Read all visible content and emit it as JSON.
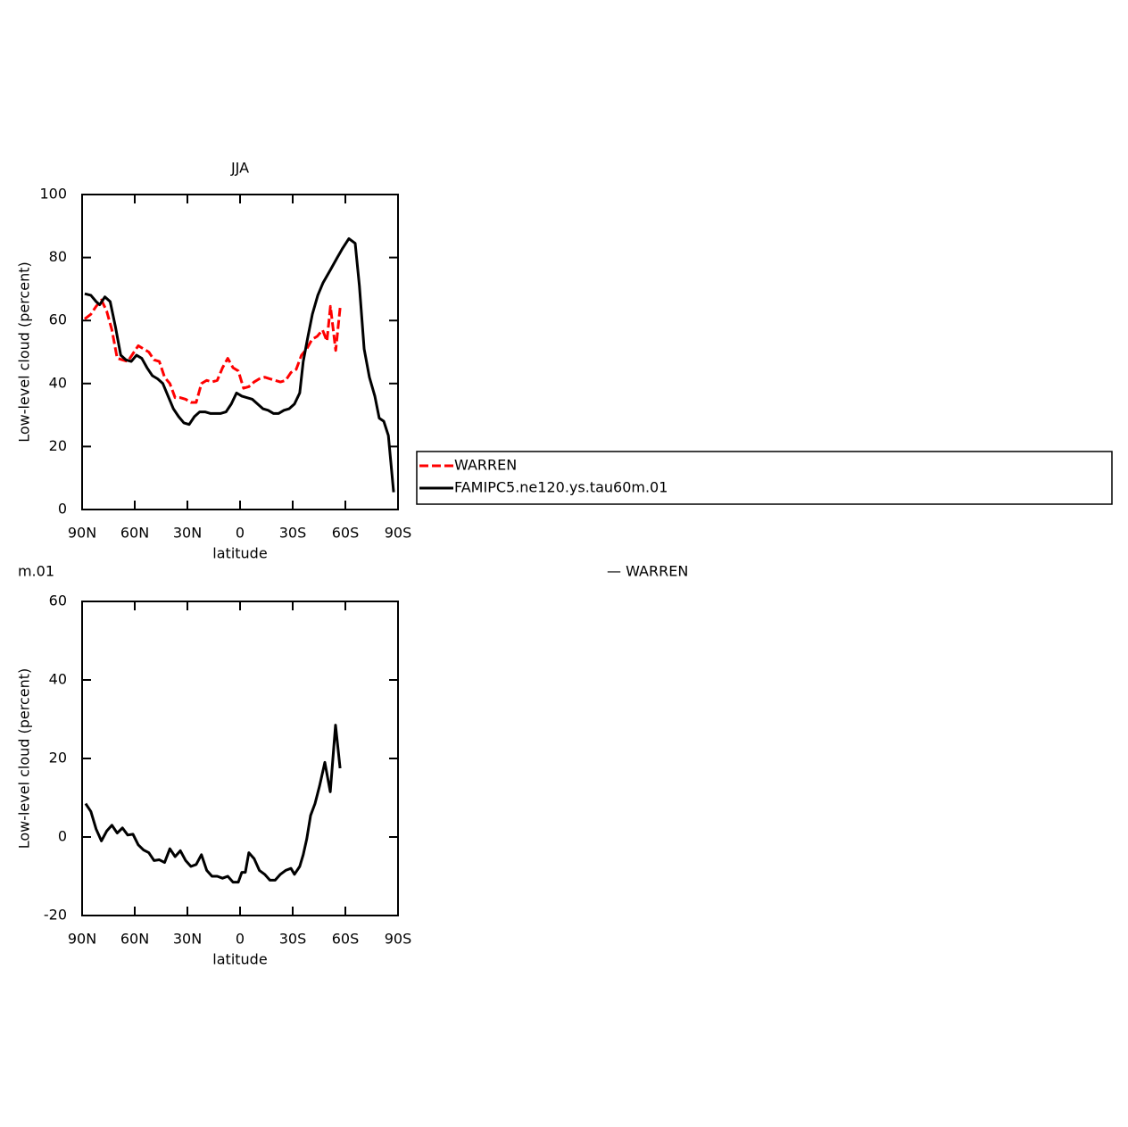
{
  "chart_data": [
    {
      "type": "line",
      "title": "JJA",
      "ylabel": "Low-level cloud (percent)",
      "xlabel": "latitude",
      "xlim": [
        90,
        -90
      ],
      "ylim": [
        0,
        100
      ],
      "xticks": [
        {
          "value": 90,
          "label": "90N"
        },
        {
          "value": 60,
          "label": "60N"
        },
        {
          "value": 30,
          "label": "30N"
        },
        0,
        {
          "value": -30,
          "label": "30S"
        },
        {
          "value": -60,
          "label": "60S"
        },
        {
          "value": -90,
          "label": "90S"
        }
      ],
      "yticks": [
        0,
        20,
        40,
        60,
        80,
        100
      ],
      "legend": "right",
      "series": [
        {
          "name": "WARREN",
          "color": "#ff0000",
          "dash": true,
          "x": [
            88.5,
            85,
            82,
            79,
            76,
            73,
            70,
            67,
            64,
            61,
            58,
            55,
            52,
            49,
            46,
            43,
            40,
            37,
            34,
            31,
            28,
            25,
            22,
            19,
            16,
            13,
            10,
            7,
            4,
            1,
            -2,
            -5,
            -8,
            -11,
            -14,
            -17,
            -20,
            -23,
            -26,
            -29,
            -32,
            -35,
            -38,
            -41,
            -44,
            -47,
            -49.5,
            -51.5,
            -54.5,
            -57
          ],
          "values": [
            60.5,
            62,
            64.5,
            66.5,
            63,
            57,
            48,
            47.5,
            47,
            49.5,
            52,
            51,
            50,
            47.5,
            47,
            42,
            40,
            35.5,
            35.5,
            35,
            34,
            34,
            40,
            41,
            40.5,
            41,
            45,
            48,
            45,
            44,
            38.5,
            39,
            40.5,
            41.5,
            42,
            41.5,
            41,
            40.5,
            41,
            43.5,
            44.5,
            49,
            51,
            54,
            55,
            57,
            53.5,
            64.5,
            50.5,
            64
          ]
        },
        {
          "name": "FAMIPC5.ne120.ys.tau60m.01",
          "color": "#000000",
          "dash": false,
          "x": [
            88.5,
            85,
            82,
            80,
            77,
            74,
            71,
            68,
            65,
            62,
            59,
            56,
            53,
            50,
            47,
            44,
            41,
            38,
            35,
            32,
            29,
            26,
            23,
            20,
            17,
            14,
            11,
            8,
            5,
            2,
            -1,
            -4,
            -7,
            -10,
            -13,
            -16,
            -19,
            -22,
            -25,
            -28,
            -31,
            -34,
            -36,
            -38.7,
            -41.2,
            -44.3,
            -47.3,
            -51.4,
            -55.4,
            -58.5,
            -62,
            -65.6,
            -68,
            -70.7,
            -73.7,
            -76.8,
            -79.3,
            -81.9,
            -84.5,
            -87.5
          ],
          "values": [
            68.5,
            68,
            66,
            65,
            67.5,
            66,
            58,
            49,
            47.5,
            47,
            49,
            48,
            45,
            42.5,
            41.5,
            40,
            36,
            32,
            29.5,
            27.5,
            27,
            29.5,
            31,
            31,
            30.5,
            30.5,
            30.5,
            31,
            33.5,
            37,
            36,
            35.5,
            35,
            33.5,
            32,
            31.5,
            30.5,
            30.5,
            31.5,
            32,
            33.5,
            37,
            47,
            55,
            62,
            68,
            72,
            76,
            80,
            83,
            86,
            84.5,
            71,
            51,
            42,
            36,
            29,
            28,
            23.5,
            5.5
          ]
        }
      ]
    },
    {
      "type": "line",
      "ylabel": "Low-level cloud (percent)",
      "xlabel": "latitude",
      "annotations": [
        "m.01",
        "— WARREN"
      ],
      "xlim": [
        90,
        -90
      ],
      "ylim": [
        -20,
        60
      ],
      "xticks": [
        {
          "value": 90,
          "label": "90N"
        },
        {
          "value": 60,
          "label": "60N"
        },
        {
          "value": 30,
          "label": "30N"
        },
        0,
        {
          "value": -30,
          "label": "30S"
        },
        {
          "value": -60,
          "label": "60S"
        },
        {
          "value": -90,
          "label": "90S"
        }
      ],
      "yticks": [
        -20,
        0,
        20,
        40,
        60
      ],
      "series": [
        {
          "color": "#000000",
          "dash": false,
          "x": [
            88,
            85,
            82,
            79,
            76,
            73,
            70,
            67,
            64,
            61,
            58,
            55,
            52,
            49,
            46,
            43,
            40,
            37,
            34,
            31,
            28,
            25,
            22,
            19,
            16,
            13,
            10,
            7,
            4,
            1,
            -1,
            -3,
            -5,
            -8,
            -11,
            -14,
            -17,
            -20,
            -23,
            -26,
            -29,
            -31,
            -34,
            -36,
            -38,
            -40.2,
            -42.7,
            -45.3,
            -48.3,
            -51.4,
            -54.4,
            -57
          ],
          "values": [
            8.5,
            6.5,
            2,
            -1,
            1.5,
            3,
            1,
            2.3,
            0.5,
            0.7,
            -2,
            -3.3,
            -4,
            -6,
            -5.8,
            -6.5,
            -3,
            -5,
            -3.5,
            -6,
            -7.5,
            -7,
            -4.5,
            -8.5,
            -10,
            -10,
            -10.5,
            -10,
            -11.5,
            -11.5,
            -9,
            -9,
            -4,
            -5.5,
            -8.5,
            -9.5,
            -11,
            -11,
            -9.5,
            -8.5,
            -8,
            -9.5,
            -7.5,
            -4.5,
            -0.5,
            5.5,
            8.5,
            13,
            19,
            11.5,
            28.5,
            17.5
          ]
        }
      ]
    }
  ]
}
